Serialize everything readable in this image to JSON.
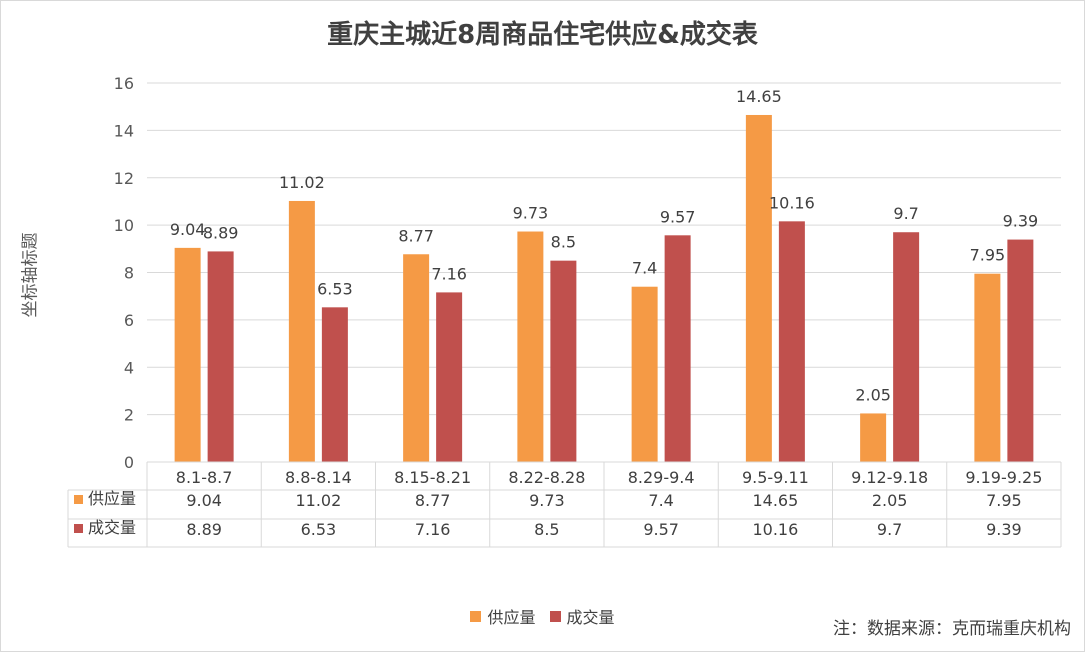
{
  "chart_data": {
    "type": "bar",
    "title": "重庆主城近8周商品住宅供应&成交表",
    "ylabel": "坐标轴标题",
    "xlabel": "",
    "ylim": [
      0,
      16
    ],
    "yticks": [
      0,
      2,
      4,
      6,
      8,
      10,
      12,
      14,
      16
    ],
    "categories": [
      "8.1-8.7",
      "8.8-8.14",
      "8.15-8.21",
      "8.22-8.28",
      "8.29-9.4",
      "9.5-9.11",
      "9.12-9.18",
      "9.19-9.25"
    ],
    "series": [
      {
        "name": "供应量",
        "color": "#f59a45",
        "values": [
          9.04,
          11.02,
          8.77,
          9.73,
          7.4,
          14.65,
          2.05,
          7.95
        ]
      },
      {
        "name": "成交量",
        "color": "#c0504d",
        "values": [
          8.89,
          6.53,
          7.16,
          8.5,
          9.57,
          10.16,
          9.7,
          9.39
        ]
      }
    ],
    "grid": true,
    "legend_position": "bottom",
    "data_table": true
  },
  "note": "注：数据来源：克而瑞重庆机构"
}
